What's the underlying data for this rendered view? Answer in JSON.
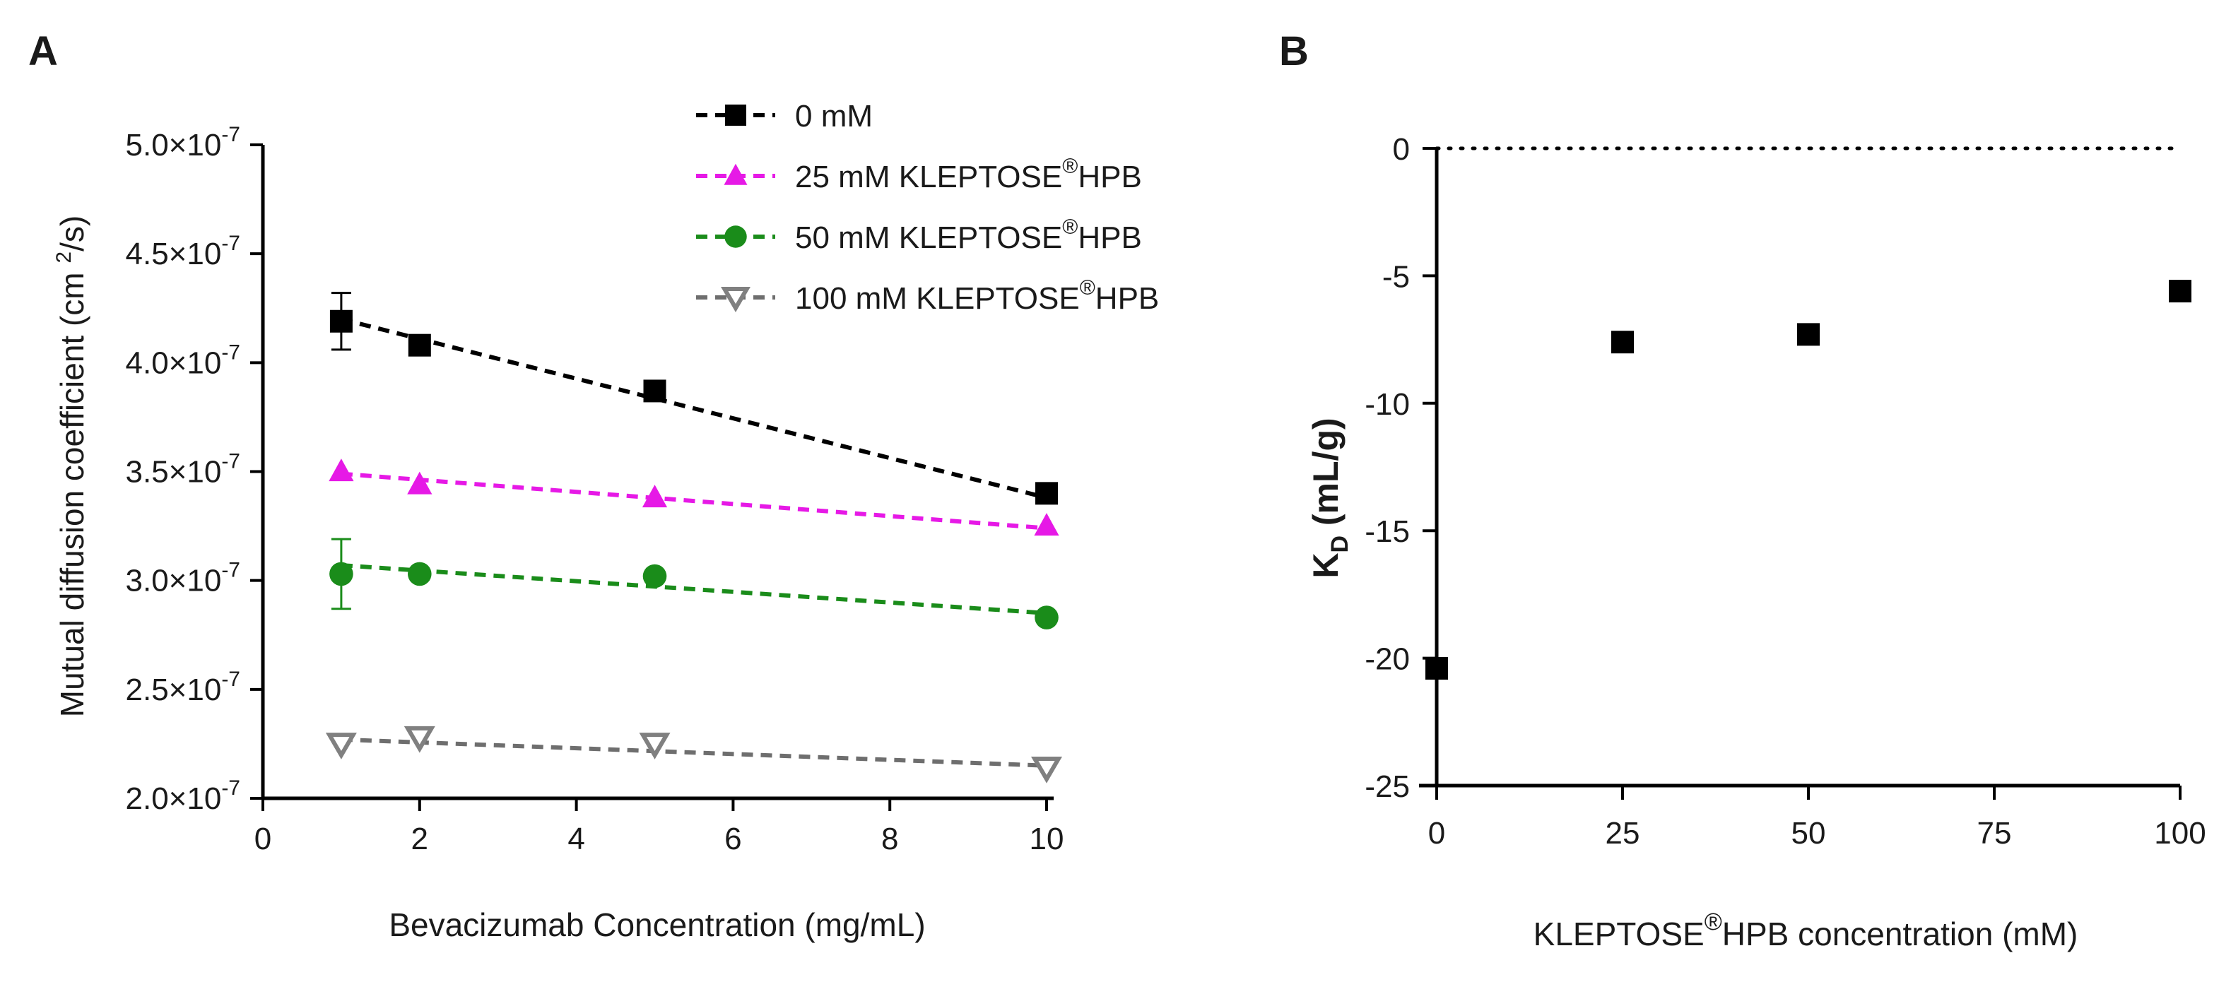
{
  "panels": {
    "a": {
      "label": "A"
    },
    "b": {
      "label": "B"
    }
  },
  "chart_data": [
    {
      "type": "scatter",
      "panel": "A",
      "title": "",
      "xlabel": "Bevacizumab Concentration (mg/mL)",
      "ylabel": "Mutual diffusion coefficient (cm²/s)",
      "xlim": [
        0,
        10
      ],
      "ylim": [
        2e-07,
        5e-07
      ],
      "xticks": [
        "0",
        "2",
        "4",
        "6",
        "8",
        "10"
      ],
      "xtick_values": [
        0,
        2,
        4,
        6,
        8,
        10
      ],
      "yticks": [
        "2.0×10",
        "2.5×10",
        "3.0×10",
        "3.5×10",
        "4.0×10",
        "4.5×10",
        "5.0×10"
      ],
      "ytick_values": [
        2e-07,
        2.5e-07,
        3e-07,
        3.5e-07,
        4e-07,
        4.5e-07,
        5e-07
      ],
      "ytick_exponent": "-7",
      "legend_position": "top-right",
      "series": [
        {
          "name": "0 mM",
          "name_main": "0 mM",
          "name_sup": "",
          "name_suffix": "",
          "marker": "square",
          "color": "#000000",
          "line_color": "#000000",
          "x": [
            1,
            2,
            5,
            10
          ],
          "y": [
            4.19e-07,
            4.08e-07,
            3.87e-07,
            3.4e-07
          ],
          "yerr": [
            1.3e-08,
            0,
            0,
            0
          ],
          "fit": [
            [
              1,
              4.2e-07
            ],
            [
              10,
              3.38e-07
            ]
          ]
        },
        {
          "name": "25 mM KLEPTOSE®HPB",
          "name_main": "25 mM KLEPTOSE",
          "name_sup": "®",
          "name_suffix": "HPB",
          "marker": "triangle",
          "color": "#e619e6",
          "line_color": "#e619e6",
          "x": [
            1,
            2,
            5,
            10
          ],
          "y": [
            3.5e-07,
            3.44e-07,
            3.38e-07,
            3.25e-07
          ],
          "yerr": [
            0,
            0,
            0,
            0
          ],
          "fit": [
            [
              1,
              3.49e-07
            ],
            [
              10,
              3.24e-07
            ]
          ]
        },
        {
          "name": "50 mM KLEPTOSE®HPB",
          "name_main": "50 mM KLEPTOSE",
          "name_sup": "®",
          "name_suffix": "HPB",
          "marker": "circle",
          "color": "#1a8c1a",
          "line_color": "#1a8c1a",
          "x": [
            1,
            2,
            5,
            10
          ],
          "y": [
            3.03e-07,
            3.03e-07,
            3.02e-07,
            2.83e-07
          ],
          "yerr": [
            1.6e-08,
            0,
            0,
            0
          ],
          "fit": [
            [
              1,
              3.07e-07
            ],
            [
              10,
              2.85e-07
            ]
          ]
        },
        {
          "name": "100 mM KLEPTOSE®HPB",
          "name_main": "100 mM KLEPTOSE",
          "name_sup": "®",
          "name_suffix": "HPB",
          "marker": "triangle-down-open",
          "color": "#808080",
          "line_color": "#6e6e6e",
          "x": [
            1,
            2,
            5,
            10
          ],
          "y": [
            2.25e-07,
            2.28e-07,
            2.25e-07,
            2.14e-07
          ],
          "yerr": [
            0,
            0,
            0,
            0
          ],
          "fit": [
            [
              1,
              2.27e-07
            ],
            [
              10,
              2.15e-07
            ]
          ]
        }
      ]
    },
    {
      "type": "scatter",
      "panel": "B",
      "title": "",
      "xlabel": "KLEPTOSE®HPB concentration (mM)",
      "xlabel_main": "KLEPTOSE",
      "xlabel_sup": "®",
      "xlabel_suffix": "HPB concentration (mM)",
      "ylabel": "KD (mL/g)",
      "ylabel_main": "K",
      "ylabel_sub": "D",
      "ylabel_suffix": " (mL/g)",
      "xlim": [
        0,
        100
      ],
      "ylim": [
        -25,
        0
      ],
      "xticks": [
        "0",
        "25",
        "50",
        "75",
        "100"
      ],
      "xtick_values": [
        0,
        25,
        50,
        75,
        100
      ],
      "yticks": [
        "0",
        "-5",
        "-10",
        "-15",
        "-20",
        "-25"
      ],
      "ytick_values": [
        0,
        -5,
        -10,
        -15,
        -20,
        -25
      ],
      "reference_line": 0,
      "series": [
        {
          "name": "KD",
          "marker": "square",
          "color": "#000000",
          "x": [
            0,
            25,
            50,
            100
          ],
          "y": [
            -20.4,
            -7.6,
            -7.3,
            -5.6
          ]
        }
      ]
    }
  ]
}
